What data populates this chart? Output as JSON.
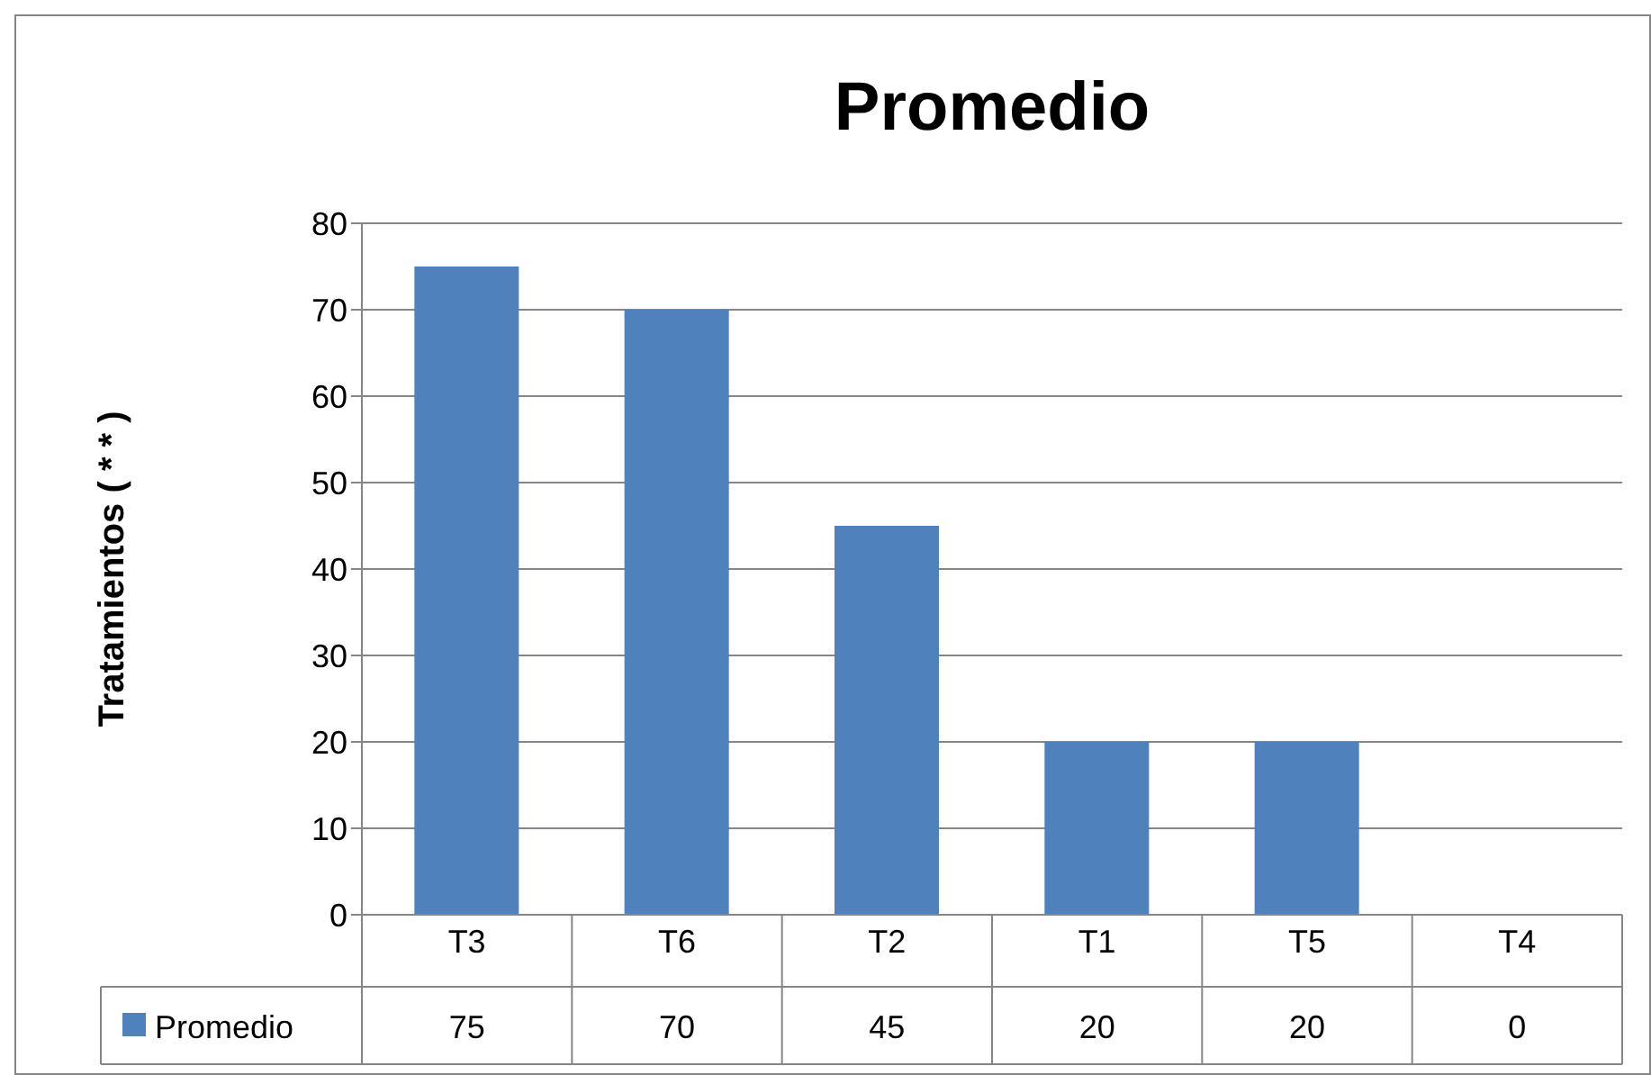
{
  "chart_data": {
    "type": "bar",
    "title": "Promedio",
    "ylabel": "Tratamientos ( * * )",
    "categories": [
      "T3",
      "T6",
      "T2",
      "T1",
      "T5",
      "T4"
    ],
    "series": [
      {
        "name": "Promedio",
        "color": "#4f81bd",
        "values": [
          75,
          70,
          45,
          20,
          20,
          0
        ]
      }
    ],
    "ylim": [
      0,
      80
    ],
    "yticks": [
      0,
      10,
      20,
      30,
      40,
      50,
      60,
      70,
      80
    ],
    "grid": "y",
    "legend": "bottom left",
    "data_labels": true
  }
}
